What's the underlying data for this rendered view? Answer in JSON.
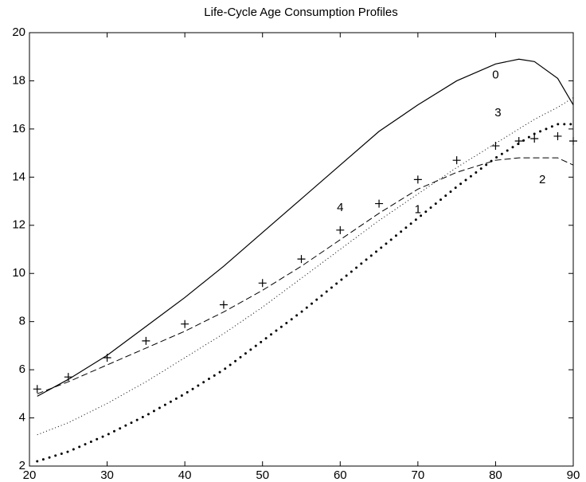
{
  "chart_data": {
    "type": "line",
    "title": "Life-Cycle Age Consumption Profiles",
    "x": [
      21,
      25,
      30,
      35,
      40,
      45,
      50,
      55,
      60,
      65,
      70,
      75,
      80,
      83,
      85,
      88,
      90
    ],
    "series": [
      {
        "name": "0",
        "color": "#000000",
        "style": "solid",
        "values": [
          4.9,
          5.6,
          6.6,
          7.8,
          9.0,
          10.3,
          11.7,
          13.1,
          14.5,
          15.9,
          17.0,
          18.0,
          18.7,
          18.9,
          18.8,
          18.1,
          17.0
        ]
      },
      {
        "name": "1",
        "color": "#000000",
        "style": "bold-dotted",
        "values": [
          2.2,
          2.6,
          3.3,
          4.1,
          5.0,
          6.0,
          7.2,
          8.4,
          9.7,
          11.0,
          12.3,
          13.6,
          14.8,
          15.4,
          15.8,
          16.2,
          16.2
        ]
      },
      {
        "name": "2",
        "color": "#000000",
        "style": "dashed",
        "values": [
          5.0,
          5.5,
          6.2,
          6.9,
          7.6,
          8.4,
          9.3,
          10.3,
          11.4,
          12.5,
          13.5,
          14.2,
          14.7,
          14.8,
          14.8,
          14.8,
          14.5
        ]
      },
      {
        "name": "3",
        "color": "#000000",
        "style": "dotted",
        "values": [
          3.3,
          3.8,
          4.6,
          5.5,
          6.5,
          7.5,
          8.6,
          9.8,
          11.0,
          12.2,
          13.3,
          14.4,
          15.4,
          16.0,
          16.4,
          16.9,
          17.3
        ]
      },
      {
        "name": "4",
        "color": "#000000",
        "style": "plus",
        "values": [
          5.2,
          5.7,
          6.5,
          7.2,
          7.9,
          8.7,
          9.6,
          10.6,
          11.8,
          12.9,
          13.9,
          14.7,
          15.3,
          15.5,
          15.6,
          15.7,
          15.5
        ]
      }
    ],
    "xlim": [
      20,
      90
    ],
    "xticks": [
      20,
      30,
      40,
      50,
      60,
      70,
      80,
      90
    ],
    "ylim": [
      2,
      20
    ],
    "yticks": [
      2,
      4,
      6,
      8,
      10,
      12,
      14,
      16,
      18,
      20
    ]
  }
}
